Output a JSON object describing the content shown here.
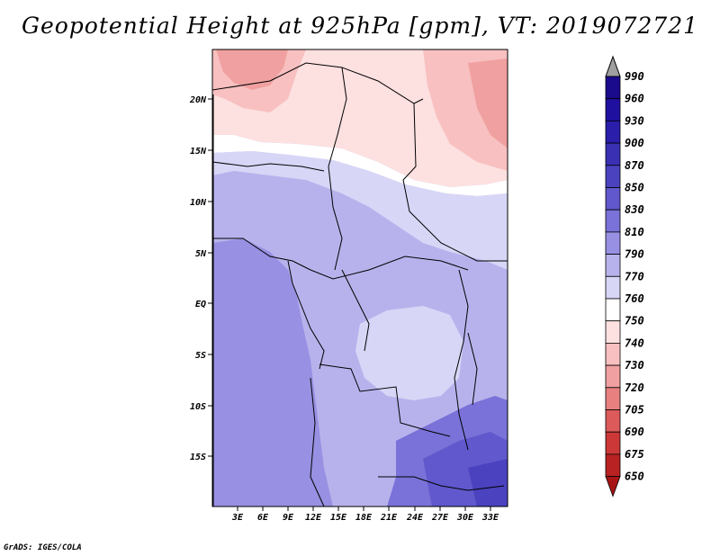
{
  "title": "Geopotential Height at 925hPa [gpm], VT: 2019072721",
  "credit": "GrADS: IGES/COLA",
  "map": {
    "lat_ticks": [
      "20N",
      "15N",
      "10N",
      "5N",
      "EQ",
      "5S",
      "10S",
      "15S"
    ],
    "lon_ticks": [
      "3E",
      "6E",
      "9E",
      "12E",
      "15E",
      "18E",
      "21E",
      "24E",
      "27E",
      "30E",
      "33E"
    ]
  },
  "colorbar": {
    "labels": [
      "990",
      "960",
      "930",
      "900",
      "870",
      "850",
      "830",
      "810",
      "790",
      "770",
      "760",
      "750",
      "740",
      "730",
      "720",
      "705",
      "690",
      "675",
      "650"
    ],
    "colors": {
      "max_arrow": "#a0a0a0",
      "bins": [
        "#1a0a8c",
        "#2010a0",
        "#2a1eaa",
        "#3a30b4",
        "#4a42be",
        "#6058cc",
        "#7a72d8",
        "#9890e2",
        "#b8b2ec",
        "#d8d6f6",
        "#ffffff",
        "#fde0e0",
        "#f8c0c0",
        "#f0a0a0",
        "#e88080",
        "#dd5a5a",
        "#cc3838",
        "#b82222",
        "#a81414"
      ]
    }
  }
}
